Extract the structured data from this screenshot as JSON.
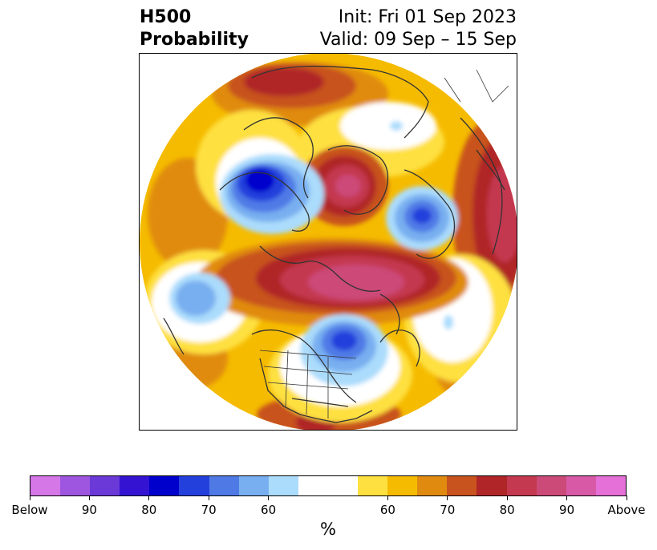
{
  "title": {
    "left_line1": "H500",
    "left_line2": "Probability",
    "right_line1": "Init: Fri 01 Sep 2023",
    "right_line2": "Valid: 09 Sep – 15 Sep"
  },
  "colorbar": {
    "unit_label": "%",
    "colors": [
      "#d677e8",
      "#9e56e0",
      "#6a39d8",
      "#3414d2",
      "#0000cc",
      "#2440dc",
      "#4f7ae6",
      "#78aff0",
      "#abdcfc",
      "#ffffff",
      "#ffffff",
      "#fee040",
      "#f5bb00",
      "#e08b10",
      "#c8531e",
      "#b02628",
      "#c43950",
      "#cc4a78",
      "#d85aa6",
      "#e470d8"
    ],
    "tick_labels": [
      "Below",
      "90",
      "80",
      "70",
      "60",
      "60",
      "70",
      "80",
      "90",
      "Above"
    ]
  },
  "legend_colors": {
    "below_extreme": "#d677e8",
    "below_strong": "#0000cc",
    "below_light": "#abdcfc",
    "neutral": "#ffffff",
    "above_light": "#fee040",
    "above_strong": "#b02628",
    "above_extreme": "#e470d8",
    "coastline": "#333333"
  }
}
